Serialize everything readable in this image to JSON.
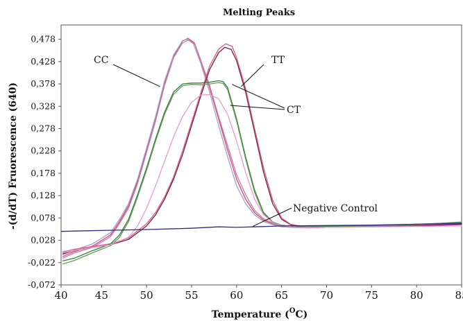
{
  "chart_data": {
    "type": "line",
    "title": "Melting Peaks",
    "xlabel_prefix": "Temperature (",
    "xlabel_degree": "O",
    "xlabel_suffix": "C)",
    "ylabel": "-(d/dT) Fruorescence (640)",
    "xlim": [
      40.5,
      85
    ],
    "ylim": [
      -0.072,
      0.51
    ],
    "x_ticks": [
      40,
      45,
      50,
      55,
      60,
      65,
      70,
      75,
      80,
      85
    ],
    "y_ticks": [
      "-0,072",
      "-0,022",
      "0,028",
      "0,078",
      "0,128",
      "0,178",
      "0,228",
      "0,278",
      "0,328",
      "0,378",
      "0,428",
      "0,478"
    ],
    "y_tick_values": [
      -0.072,
      -0.022,
      0.028,
      0.078,
      0.128,
      0.178,
      0.228,
      0.278,
      0.328,
      0.378,
      0.428,
      0.478
    ],
    "grid": false,
    "annotations": [
      {
        "text": "CC",
        "target": [
          51.5,
          0.372
        ]
      },
      {
        "text": "TT",
        "target": [
          60.5,
          0.372
        ]
      },
      {
        "text": "CT",
        "target": [
          59.5,
          0.377
        ]
      },
      {
        "text": "CT",
        "target": [
          59.3,
          0.33
        ]
      },
      {
        "text": "Negative Control",
        "target": [
          61.8,
          0.059
        ]
      }
    ],
    "series": [
      {
        "group": "CC",
        "color": "#d1447c",
        "x": [
          40.7,
          42,
          44,
          46,
          47,
          48,
          49,
          50,
          51,
          52,
          53,
          54,
          54.6,
          55.3,
          56,
          57,
          58,
          59,
          60,
          61,
          62,
          63,
          64,
          65,
          66,
          67,
          68,
          70,
          75,
          80,
          85
        ],
        "y": [
          -0.008,
          0.003,
          0.015,
          0.04,
          0.07,
          0.105,
          0.16,
          0.23,
          0.3,
          0.38,
          0.44,
          0.474,
          0.48,
          0.47,
          0.43,
          0.37,
          0.3,
          0.23,
          0.165,
          0.12,
          0.09,
          0.073,
          0.065,
          0.06,
          0.057,
          0.056,
          0.056,
          0.057,
          0.058,
          0.06,
          0.063
        ]
      },
      {
        "group": "CC",
        "color": "#a0a0c8",
        "x": [
          40.7,
          42,
          44,
          46,
          47,
          48,
          49,
          50,
          51,
          52,
          53,
          54,
          54.5,
          55.2,
          56,
          57,
          58,
          59,
          60,
          61,
          62,
          63,
          64,
          65,
          66,
          67,
          68,
          70,
          75,
          80,
          85
        ],
        "y": [
          -0.004,
          0.006,
          0.02,
          0.045,
          0.075,
          0.11,
          0.165,
          0.235,
          0.305,
          0.385,
          0.443,
          0.475,
          0.478,
          0.468,
          0.425,
          0.36,
          0.285,
          0.215,
          0.15,
          0.11,
          0.085,
          0.07,
          0.063,
          0.058,
          0.057,
          0.056,
          0.057,
          0.058,
          0.06,
          0.064,
          0.068
        ]
      },
      {
        "group": "CC",
        "color": "#c77c9a",
        "x": [
          40.7,
          42,
          44,
          46,
          47,
          48,
          49,
          50,
          51,
          52,
          53,
          54,
          54.7,
          55.4,
          56,
          57,
          58,
          59,
          60,
          61,
          62,
          63,
          64,
          65,
          66,
          67,
          68,
          70,
          75,
          80,
          85
        ],
        "y": [
          -0.012,
          0.0,
          0.012,
          0.036,
          0.066,
          0.1,
          0.155,
          0.225,
          0.295,
          0.375,
          0.437,
          0.47,
          0.477,
          0.466,
          0.432,
          0.375,
          0.305,
          0.24,
          0.175,
          0.13,
          0.095,
          0.076,
          0.066,
          0.061,
          0.058,
          0.057,
          0.056,
          0.057,
          0.059,
          0.061,
          0.065
        ]
      },
      {
        "group": "TT",
        "color": "#7a1838",
        "x": [
          40.7,
          42,
          44,
          46,
          48,
          50,
          51,
          52,
          53,
          54,
          55,
          56,
          57,
          58,
          58.7,
          59.4,
          60,
          61,
          62,
          63,
          64,
          65,
          66,
          67,
          68,
          70,
          75,
          80,
          85
        ],
        "y": [
          -0.002,
          0.005,
          0.012,
          0.018,
          0.03,
          0.06,
          0.085,
          0.12,
          0.165,
          0.22,
          0.285,
          0.35,
          0.41,
          0.448,
          0.46,
          0.455,
          0.43,
          0.36,
          0.27,
          0.18,
          0.11,
          0.075,
          0.063,
          0.059,
          0.058,
          0.058,
          0.059,
          0.061,
          0.064
        ]
      },
      {
        "group": "TT",
        "color": "#d65a8c",
        "x": [
          40.7,
          42,
          44,
          46,
          48,
          50,
          51,
          52,
          53,
          54,
          55,
          56,
          57,
          58,
          58.8,
          59.5,
          60,
          61,
          62,
          63,
          64,
          65,
          66,
          67,
          68,
          70,
          75,
          80,
          85
        ],
        "y": [
          0.002,
          0.008,
          0.014,
          0.02,
          0.033,
          0.065,
          0.09,
          0.125,
          0.17,
          0.228,
          0.292,
          0.357,
          0.418,
          0.456,
          0.468,
          0.462,
          0.437,
          0.368,
          0.278,
          0.19,
          0.118,
          0.078,
          0.064,
          0.06,
          0.059,
          0.059,
          0.06,
          0.062,
          0.066
        ]
      },
      {
        "group": "CT",
        "color": "#2e7d3a",
        "x": [
          40.7,
          42,
          44,
          45,
          46,
          47,
          48,
          49,
          50,
          51,
          52,
          53,
          54,
          55,
          56,
          57,
          58,
          58.5,
          59,
          60,
          61,
          62,
          63,
          64,
          65,
          66,
          67,
          68,
          70,
          75,
          80,
          85
        ],
        "y": [
          -0.018,
          -0.012,
          0.005,
          0.012,
          0.02,
          0.04,
          0.075,
          0.13,
          0.19,
          0.255,
          0.315,
          0.36,
          0.378,
          0.38,
          0.38,
          0.382,
          0.385,
          0.383,
          0.37,
          0.3,
          0.215,
          0.14,
          0.09,
          0.069,
          0.062,
          0.059,
          0.058,
          0.058,
          0.059,
          0.061,
          0.064,
          0.067
        ]
      },
      {
        "group": "CT",
        "color": "#6a9a5a",
        "x": [
          40.7,
          42,
          44,
          45,
          46,
          47,
          48,
          49,
          50,
          51,
          52,
          53,
          54,
          55,
          56,
          57,
          58,
          58.5,
          59,
          60,
          61,
          62,
          63,
          64,
          65,
          66,
          67,
          68,
          70,
          75,
          80,
          85
        ],
        "y": [
          -0.025,
          -0.017,
          0.0,
          0.008,
          0.016,
          0.035,
          0.07,
          0.125,
          0.185,
          0.25,
          0.31,
          0.355,
          0.374,
          0.377,
          0.376,
          0.378,
          0.381,
          0.379,
          0.365,
          0.295,
          0.21,
          0.135,
          0.087,
          0.067,
          0.061,
          0.058,
          0.057,
          0.057,
          0.058,
          0.06,
          0.063,
          0.069
        ]
      },
      {
        "group": "CT",
        "color": "#e89ad2",
        "x": [
          40.7,
          42,
          44,
          46,
          48,
          49,
          50,
          51,
          52,
          53,
          54,
          55,
          56,
          57,
          58,
          59,
          60,
          61,
          62,
          63,
          64,
          65,
          66,
          67,
          68,
          70,
          75,
          80,
          85
        ],
        "y": [
          0.0,
          0.005,
          0.012,
          0.018,
          0.035,
          0.06,
          0.1,
          0.15,
          0.205,
          0.26,
          0.305,
          0.337,
          0.353,
          0.354,
          0.345,
          0.31,
          0.25,
          0.18,
          0.12,
          0.085,
          0.068,
          0.061,
          0.058,
          0.057,
          0.057,
          0.057,
          0.058,
          0.059,
          0.06
        ]
      },
      {
        "group": "Negative Control",
        "color": "#2a2a8a",
        "x": [
          40.5,
          45,
          50,
          55,
          58,
          60,
          62,
          65,
          70,
          75,
          80,
          85
        ],
        "y": [
          0.048,
          0.05,
          0.052,
          0.055,
          0.058,
          0.057,
          0.058,
          0.06,
          0.061,
          0.062,
          0.064,
          0.066
        ]
      }
    ]
  }
}
